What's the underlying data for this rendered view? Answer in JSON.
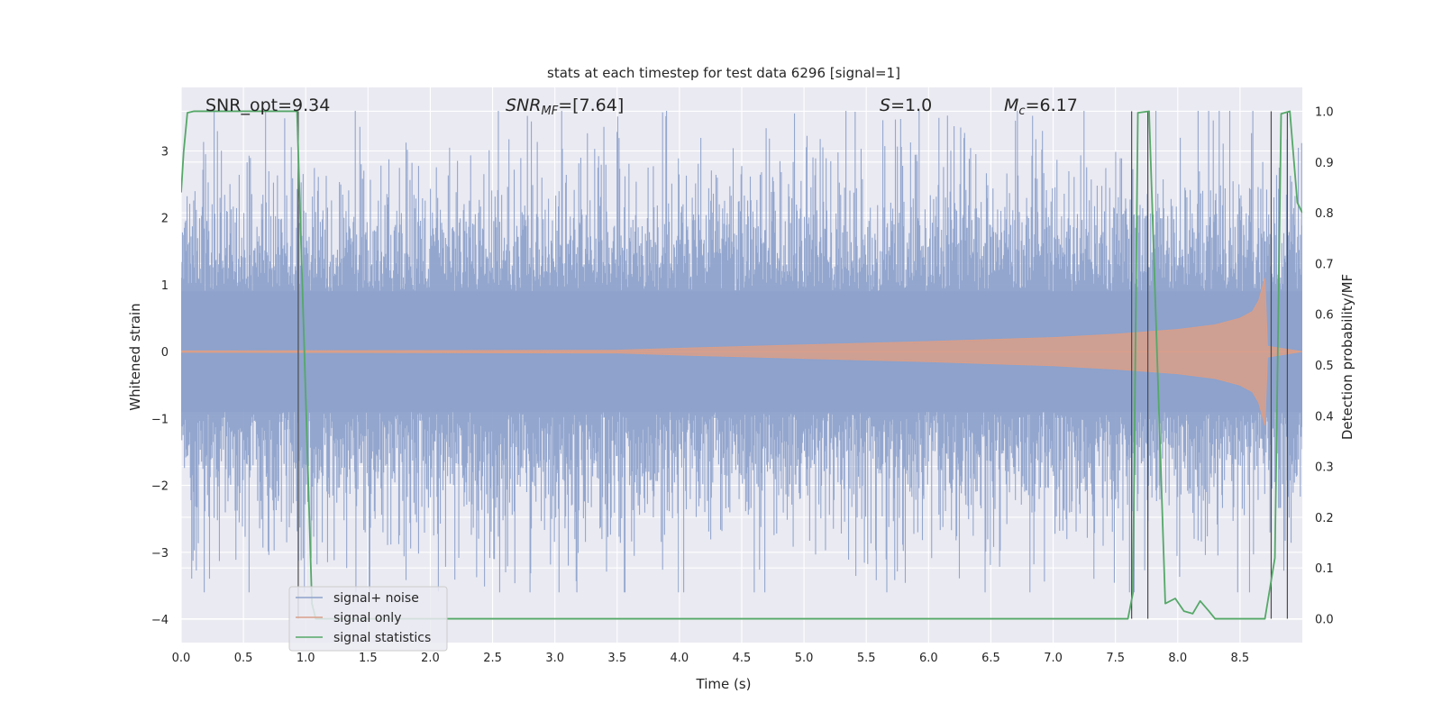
{
  "chart_data": {
    "type": "line",
    "title": "stats at each timestep for test data 6296 [signal=1]",
    "xlabel": "Time (s)",
    "ylabel": "Whitened strain",
    "y2label": "Detection probability/MF",
    "xlim": [
      0.0,
      9.0
    ],
    "ylim": [
      -4.35,
      3.95
    ],
    "y2lim": [
      -0.047,
      1.047
    ],
    "xticks": [
      "0.0",
      "0.5",
      "1.0",
      "1.5",
      "2.0",
      "2.5",
      "3.0",
      "3.5",
      "4.0",
      "4.5",
      "5.0",
      "5.5",
      "6.0",
      "6.5",
      "7.0",
      "7.5",
      "8.0",
      "8.5"
    ],
    "yticks": [
      "3",
      "2",
      "1",
      "0",
      "−1",
      "−2",
      "−3",
      "−4"
    ],
    "y2ticks": [
      "1.0",
      "0.9",
      "0.8",
      "0.7",
      "0.6",
      "0.5",
      "0.4",
      "0.3",
      "0.2",
      "0.1",
      "0.0"
    ],
    "grid": true,
    "annotations": {
      "snr_opt": "SNR_opt=9.34",
      "snr_mf_main": "SNR",
      "snr_mf_sub": "MF",
      "snr_mf_val": "=[7.64]",
      "s_main": "S",
      "s_val": "=1.0",
      "mc_main": "M",
      "mc_sub": "c",
      "mc_val": "=6.17"
    },
    "legend": {
      "position": "lower-left",
      "entries": [
        "signal+ noise",
        "signal only",
        "signal statistics"
      ]
    },
    "series": [
      {
        "name": "signal+ noise",
        "color": "#8ea2cb",
        "kind": "noise",
        "time_range": [
          0.0,
          9.0
        ],
        "approx_envelope": [
          -3.6,
          3.6
        ]
      },
      {
        "name": "signal only",
        "color": "#d99f8a",
        "kind": "chirp",
        "time_range": [
          0.0,
          9.0
        ],
        "merger_time": 8.75,
        "envelope_points": [
          [
            0.0,
            0.01
          ],
          [
            3.5,
            0.02
          ],
          [
            4.0,
            0.05
          ],
          [
            5.0,
            0.1
          ],
          [
            6.0,
            0.15
          ],
          [
            7.0,
            0.21
          ],
          [
            7.5,
            0.26
          ],
          [
            8.0,
            0.33
          ],
          [
            8.3,
            0.4
          ],
          [
            8.5,
            0.5
          ],
          [
            8.6,
            0.6
          ],
          [
            8.65,
            0.76
          ],
          [
            8.7,
            1.1
          ],
          [
            8.72,
            0.08
          ],
          [
            9.0,
            0.0
          ]
        ]
      },
      {
        "name": "signal statistics",
        "color": "#55a868",
        "x": [
          0.0,
          0.02,
          0.05,
          0.1,
          0.93,
          0.97,
          1.05,
          1.08,
          1.2,
          3.0,
          3.1,
          7.0,
          7.6,
          7.64,
          7.68,
          7.77,
          7.9,
          7.98,
          8.05,
          8.12,
          8.18,
          8.25,
          8.3,
          8.38,
          8.5,
          8.7,
          8.78,
          8.83,
          8.9,
          8.96,
          9.0
        ],
        "y": [
          0.84,
          0.92,
          0.997,
          1.0,
          1.0,
          0.68,
          0.03,
          0.0,
          0.0,
          0.0,
          0.0,
          0.0,
          0.0,
          0.05,
          0.997,
          1.0,
          0.03,
          0.04,
          0.015,
          0.01,
          0.035,
          0.015,
          0.0,
          0.0,
          0.0,
          0.0,
          0.12,
          0.995,
          1.0,
          0.82,
          0.8
        ]
      }
    ],
    "vertical_lines": [
      0.94,
      7.63,
      7.76,
      8.75,
      8.88
    ]
  }
}
